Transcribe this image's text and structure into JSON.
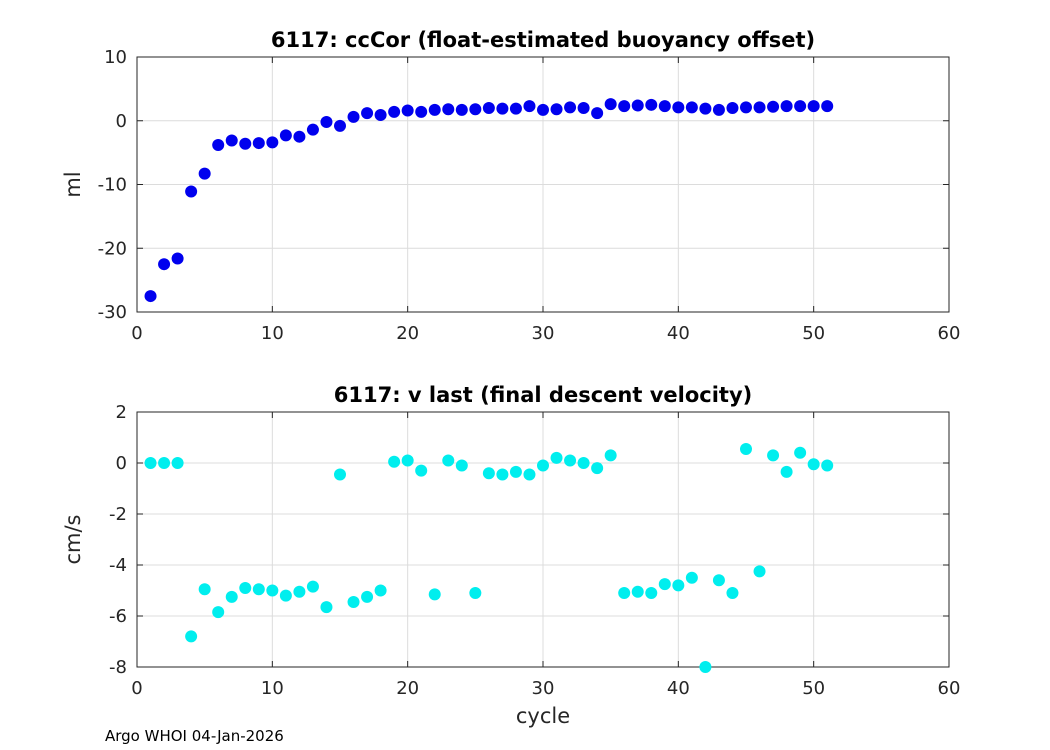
{
  "footer": "Argo WHOI 04-Jan-2026",
  "chart_data": [
    {
      "type": "scatter",
      "title": "6117: ccCor (float-estimated buoyancy offset)",
      "xlabel": "",
      "ylabel": "ml",
      "xlim": [
        0,
        60
      ],
      "ylim": [
        -30,
        10
      ],
      "xticks": [
        0,
        10,
        20,
        30,
        40,
        50,
        60
      ],
      "yticks": [
        -30,
        -20,
        -10,
        0,
        10
      ],
      "grid": true,
      "marker_color": "#0000ee",
      "x": [
        1,
        2,
        3,
        4,
        5,
        6,
        7,
        8,
        9,
        10,
        11,
        12,
        13,
        14,
        15,
        16,
        17,
        18,
        19,
        20,
        21,
        22,
        23,
        24,
        25,
        26,
        27,
        28,
        29,
        30,
        31,
        32,
        33,
        34,
        35,
        36,
        37,
        38,
        39,
        40,
        41,
        42,
        43,
        44,
        45,
        46,
        47,
        48,
        49,
        50,
        51
      ],
      "y": [
        -27.5,
        -22.5,
        -21.6,
        -11.1,
        -8.3,
        -3.8,
        -3.1,
        -3.6,
        -3.5,
        -3.4,
        -2.3,
        -2.5,
        -1.4,
        -0.2,
        -0.8,
        0.6,
        1.2,
        0.9,
        1.4,
        1.6,
        1.4,
        1.7,
        1.8,
        1.7,
        1.8,
        2.0,
        1.9,
        1.9,
        2.3,
        1.7,
        1.8,
        2.1,
        2.0,
        1.2,
        2.6,
        2.3,
        2.4,
        2.5,
        2.3,
        2.1,
        2.1,
        1.9,
        1.7,
        2.0,
        2.1,
        2.1,
        2.2,
        2.3,
        2.3,
        2.3,
        2.3
      ]
    },
    {
      "type": "scatter",
      "title": "6117: v last (final descent velocity)",
      "xlabel": "cycle",
      "ylabel": "cm/s",
      "xlim": [
        0,
        60
      ],
      "ylim": [
        -8,
        2
      ],
      "xticks": [
        0,
        10,
        20,
        30,
        40,
        50,
        60
      ],
      "yticks": [
        -8,
        -6,
        -4,
        -2,
        0,
        2
      ],
      "grid": true,
      "marker_color": "#00eeee",
      "x": [
        1,
        2,
        3,
        4,
        5,
        6,
        7,
        8,
        9,
        10,
        11,
        12,
        13,
        14,
        15,
        16,
        17,
        18,
        19,
        20,
        21,
        22,
        23,
        24,
        25,
        26,
        27,
        28,
        29,
        30,
        31,
        32,
        33,
        34,
        35,
        36,
        37,
        38,
        39,
        40,
        41,
        42,
        43,
        44,
        45,
        46,
        47,
        48,
        49,
        50,
        51
      ],
      "y": [
        0.0,
        0.0,
        0.0,
        -6.8,
        -4.95,
        -5.85,
        -5.25,
        -4.9,
        -4.95,
        -5.0,
        -5.2,
        -5.05,
        -4.85,
        -5.65,
        -0.45,
        -5.45,
        -5.25,
        -5.0,
        0.05,
        0.1,
        -0.3,
        -5.15,
        0.1,
        -0.1,
        -5.1,
        -0.4,
        -0.45,
        -0.35,
        -0.45,
        -0.1,
        0.2,
        0.1,
        0.0,
        -0.2,
        0.3,
        -5.1,
        -5.05,
        -5.1,
        -4.75,
        -4.8,
        -4.5,
        -8.0,
        -4.6,
        -5.1,
        0.55,
        -4.25,
        0.3,
        -0.35,
        0.4,
        -0.05,
        -0.1
      ]
    }
  ]
}
